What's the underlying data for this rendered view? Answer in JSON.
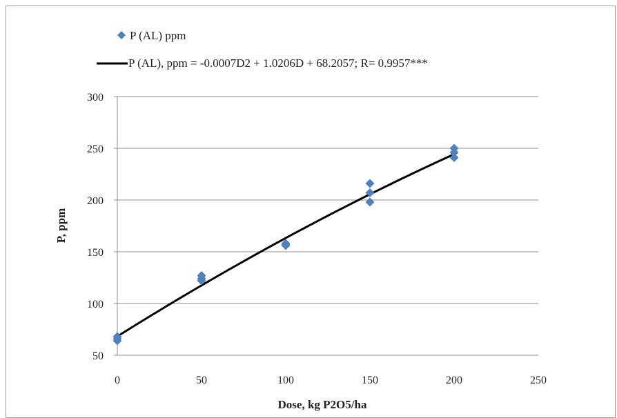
{
  "chart_data": {
    "type": "scatter",
    "title": "",
    "xlabel": "Dose, kg P2O5/ha",
    "ylabel": "P, ppm",
    "xlim": [
      0,
      250
    ],
    "ylim": [
      50,
      300
    ],
    "x_ticks": [
      0,
      50,
      100,
      150,
      200,
      250
    ],
    "y_ticks": [
      50,
      100,
      150,
      200,
      250,
      300
    ],
    "grid": "horizontal",
    "legend_position": "top",
    "series": [
      {
        "name": "P (AL) ppm",
        "marker": "diamond",
        "color": "#4f81bd",
        "points": [
          {
            "x": 0,
            "y": 68
          },
          {
            "x": 0,
            "y": 64
          },
          {
            "x": 0,
            "y": 66
          },
          {
            "x": 50,
            "y": 127
          },
          {
            "x": 50,
            "y": 122
          },
          {
            "x": 50,
            "y": 124
          },
          {
            "x": 100,
            "y": 158
          },
          {
            "x": 100,
            "y": 156
          },
          {
            "x": 100,
            "y": 157
          },
          {
            "x": 150,
            "y": 216
          },
          {
            "x": 150,
            "y": 198
          },
          {
            "x": 150,
            "y": 207
          },
          {
            "x": 200,
            "y": 250
          },
          {
            "x": 200,
            "y": 241
          },
          {
            "x": 200,
            "y": 246
          }
        ]
      },
      {
        "name": "P (AL), ppm = -0.0007D2 + 1.0206D + 68.2057; R= 0.9957***",
        "type": "line",
        "color": "#000000",
        "fit": {
          "a": -0.0007,
          "b": 1.0206,
          "c": 68.2057,
          "x_range": [
            0,
            200
          ]
        }
      }
    ]
  }
}
